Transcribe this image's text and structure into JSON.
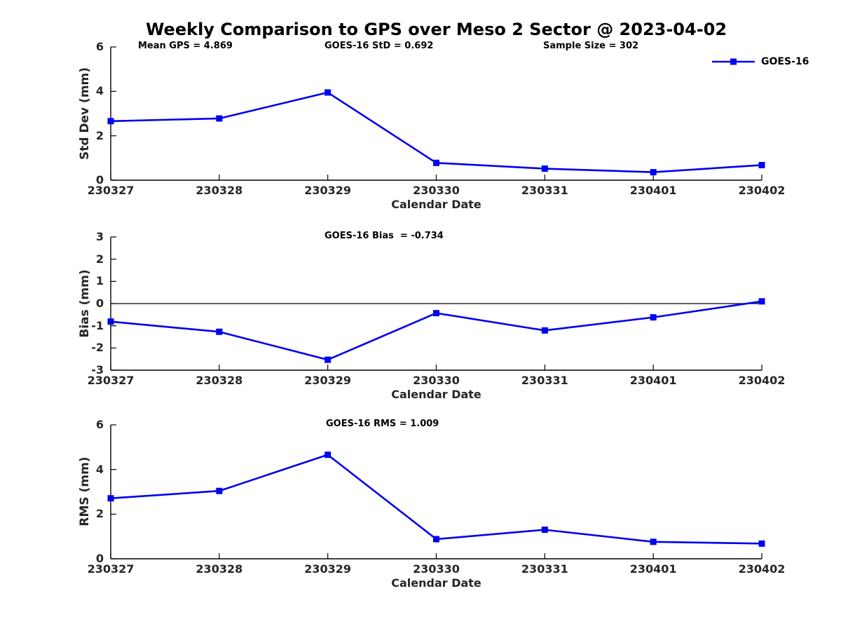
{
  "figure": {
    "title": "Weekly Comparison to GPS over Meso 2 Sector @ 2023-04-02",
    "legend": {
      "label": "GOES-16",
      "color": "#0000F0"
    }
  },
  "annotations": {
    "mean_gps": "Mean GPS = 4.869",
    "goes16_std": "GOES-16 StD = 0.692",
    "sample_size": "Sample Size = 302",
    "goes16_bias": "GOES-16 Bias  = -0.734",
    "goes16_rms": "GOES-16 RMS = 1.009"
  },
  "chart_data": [
    {
      "type": "line",
      "x": [
        "230327",
        "230328",
        "230329",
        "230330",
        "230331",
        "230401",
        "230402"
      ],
      "series": [
        {
          "name": "GOES-16",
          "color": "#0000F0",
          "marker": "square",
          "values": [
            2.66,
            2.78,
            3.95,
            0.78,
            0.52,
            0.36,
            0.68
          ]
        }
      ],
      "title": "",
      "xlabel": "Calendar Date",
      "ylabel": "Std Dev (mm)",
      "ylim": [
        0,
        6
      ],
      "yticks": [
        0,
        2,
        4,
        6
      ],
      "zero_line": false,
      "grid": false,
      "legend_position": "top-right"
    },
    {
      "type": "line",
      "x": [
        "230327",
        "230328",
        "230329",
        "230330",
        "230331",
        "230401",
        "230402"
      ],
      "series": [
        {
          "name": "GOES-16",
          "color": "#0000F0",
          "marker": "square",
          "values": [
            -0.81,
            -1.27,
            -2.53,
            -0.43,
            -1.21,
            -0.62,
            0.1
          ]
        }
      ],
      "title": "",
      "xlabel": "Calendar Date",
      "ylabel": "Bias (mm)",
      "ylim": [
        -3,
        3
      ],
      "yticks": [
        -3,
        -2,
        -1,
        0,
        1,
        2,
        3
      ],
      "zero_line": true,
      "grid": false,
      "legend_position": "none"
    },
    {
      "type": "line",
      "x": [
        "230327",
        "230328",
        "230329",
        "230330",
        "230331",
        "230401",
        "230402"
      ],
      "series": [
        {
          "name": "GOES-16",
          "color": "#0000F0",
          "marker": "square",
          "values": [
            2.71,
            3.04,
            4.66,
            0.88,
            1.3,
            0.76,
            0.68
          ]
        }
      ],
      "title": "",
      "xlabel": "Calendar Date",
      "ylabel": "RMS (mm)",
      "ylim": [
        0,
        6
      ],
      "yticks": [
        0,
        2,
        4,
        6
      ],
      "zero_line": false,
      "grid": false,
      "legend_position": "none"
    }
  ]
}
